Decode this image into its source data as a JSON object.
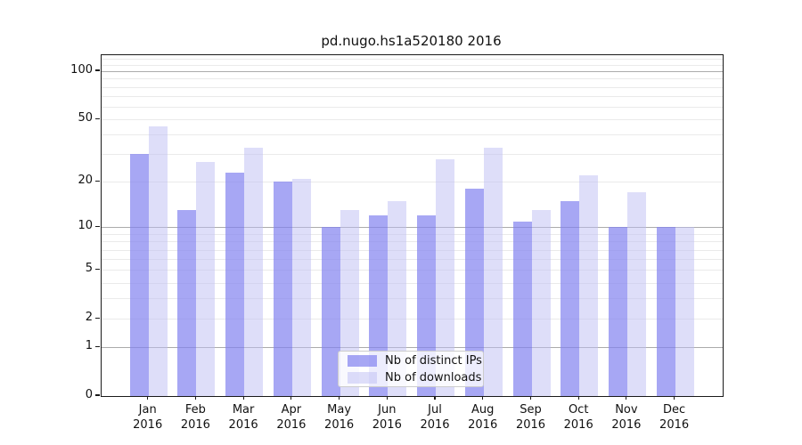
{
  "title": "pd.nugo.hs1a520180 2016",
  "chart_data": {
    "type": "bar",
    "title": "pd.nugo.hs1a520180 2016",
    "yscale": "log10(1+x)",
    "categories": [
      "Jan 2016",
      "Feb 2016",
      "Mar 2016",
      "Apr 2016",
      "May 2016",
      "Jun 2016",
      "Jul 2016",
      "Aug 2016",
      "Sep 2016",
      "Oct 2016",
      "Nov 2016",
      "Dec 2016"
    ],
    "series": [
      {
        "name": "Nb of distinct IPs",
        "color": "rgba(130,130,240,0.7)",
        "values": [
          30,
          13,
          23,
          20,
          10,
          12,
          12,
          18,
          11,
          15,
          10,
          10
        ]
      },
      {
        "name": "Nb of downloads",
        "color": "rgba(190,190,243,0.5)",
        "values": [
          45,
          27,
          33,
          21,
          13,
          15,
          28,
          33,
          13,
          22,
          17,
          10
        ]
      }
    ],
    "ytick_labels": [
      100,
      50,
      20,
      10,
      5,
      2,
      1,
      0
    ],
    "minor_gridlines": [
      2,
      3,
      4,
      5,
      6,
      7,
      8,
      9,
      20,
      30,
      40,
      50,
      60,
      70,
      80,
      90,
      110,
      120
    ],
    "major_gridlines": [
      1,
      10,
      100
    ],
    "ylim": [
      0,
      126
    ],
    "grid": true,
    "legend": {
      "position": "lower center",
      "items": [
        "Nb of distinct IPs",
        "Nb of downloads"
      ]
    }
  },
  "colors": {
    "bar_distinct_ips": "rgba(130,130,240,0.7)",
    "bar_downloads": "rgba(190,190,243,0.5)",
    "major_grid": "#ababab",
    "minor_grid": "#eaeaea",
    "axis": "#1a1a1a",
    "legend_border": "#cccccc"
  }
}
